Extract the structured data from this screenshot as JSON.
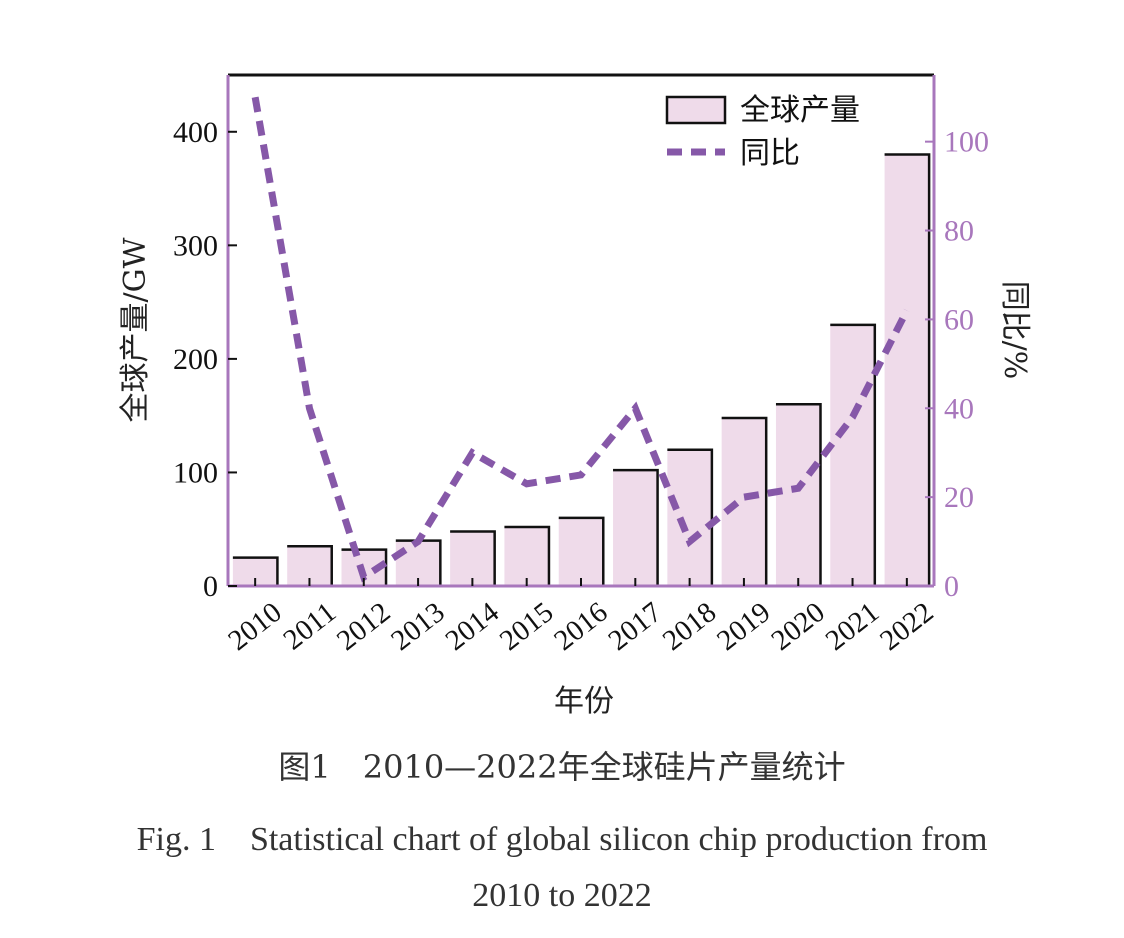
{
  "chart_data": {
    "type": "bar",
    "categories": [
      "2010",
      "2011",
      "2012",
      "2013",
      "2014",
      "2015",
      "2016",
      "2017",
      "2018",
      "2019",
      "2020",
      "2021",
      "2022"
    ],
    "series": [
      {
        "name": "全球产量",
        "type": "bar",
        "axis": "left",
        "values": [
          25,
          35,
          32,
          40,
          48,
          52,
          60,
          102,
          120,
          148,
          160,
          230,
          380
        ]
      },
      {
        "name": "同比",
        "type": "line",
        "style": "dashed",
        "axis": "right",
        "values": [
          110,
          40,
          2,
          10,
          30,
          23,
          25,
          40,
          10,
          20,
          22,
          38,
          62
        ]
      }
    ],
    "xlabel": "年份",
    "ylabel": "全球产量/GW",
    "y2label": "同比/%",
    "ylim": [
      0,
      450
    ],
    "y2lim": [
      0,
      115
    ],
    "yticks": [
      0,
      100,
      200,
      300,
      400
    ],
    "y2ticks": [
      0,
      20,
      40,
      60,
      80,
      100
    ],
    "grid": false,
    "legend_position": "top-right",
    "colors": {
      "bar_fill": "#efdbea",
      "bar_edge": "#111111",
      "line": "#8658a8",
      "right_axis": "#a877bc"
    }
  },
  "caption": {
    "cn": "图1　2010—2022年全球硅片产量统计",
    "en_line1": "Fig. 1　Statistical chart of global silicon chip production from",
    "en_line2": "2010 to 2022"
  }
}
